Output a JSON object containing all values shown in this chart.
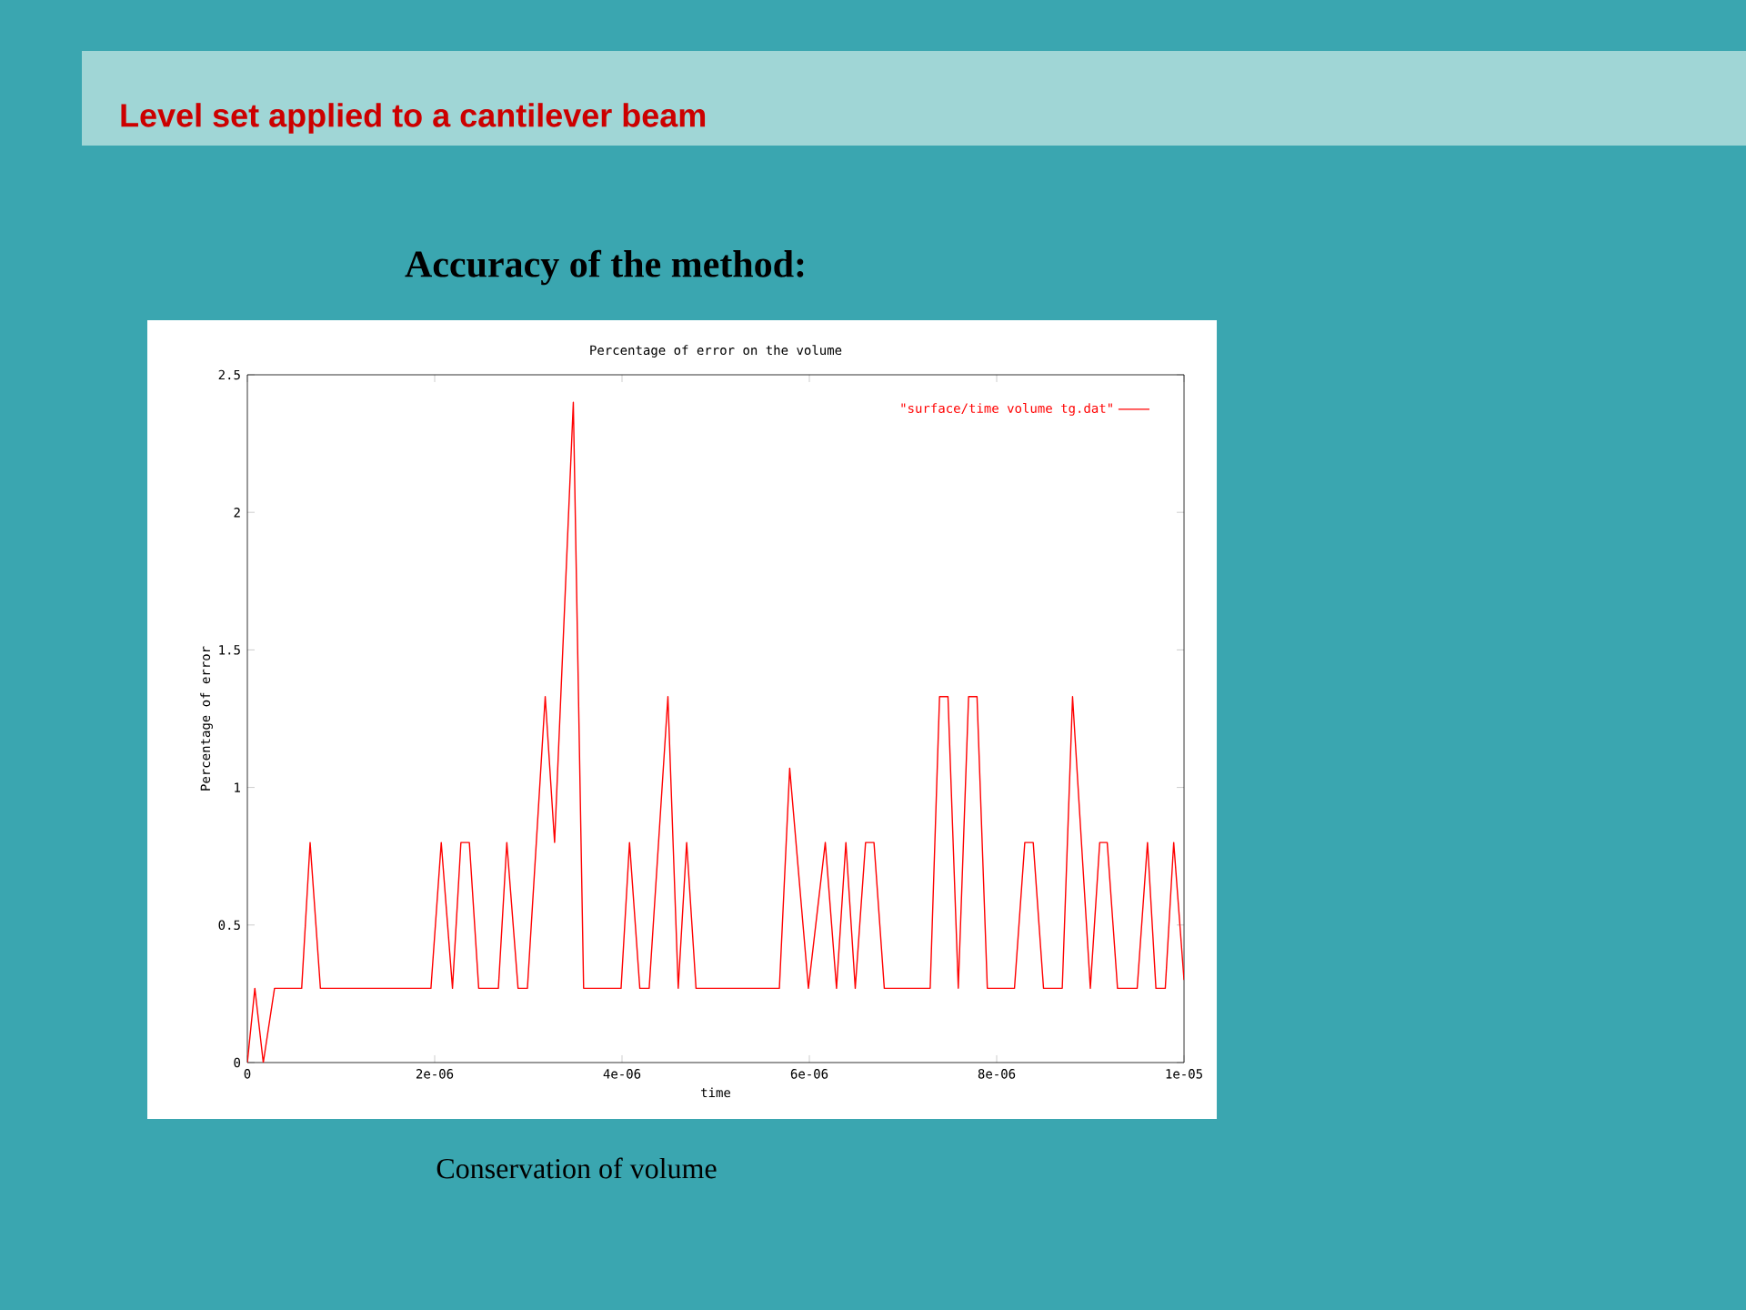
{
  "chart_data": {
    "type": "line",
    "title": "Percentage of error on the volume",
    "xlabel": "time",
    "ylabel": "Percentage of error",
    "annotations": [
      "Level set applied to a cantilever beam",
      "Accuracy of the method:",
      "Conservation of volume"
    ],
    "x": [
      0,
      8e-08,
      1.7e-07,
      2.9e-07,
      5.8e-07,
      6.7e-07,
      7.8e-07,
      1.96e-06,
      2.07e-06,
      2.19e-06,
      2.28e-06,
      2.37e-06,
      2.47e-06,
      2.68e-06,
      2.77e-06,
      2.89e-06,
      2.99e-06,
      3.18e-06,
      3.28e-06,
      3.48e-06,
      3.59e-06,
      3.99e-06,
      4.08e-06,
      4.19e-06,
      4.29e-06,
      4.49e-06,
      4.6e-06,
      4.69e-06,
      4.79e-06,
      5.68e-06,
      5.79e-06,
      5.99e-06,
      6.17e-06,
      6.29e-06,
      6.39e-06,
      6.49e-06,
      6.6e-06,
      6.69e-06,
      6.8e-06,
      7.29e-06,
      7.39e-06,
      7.48e-06,
      7.59e-06,
      7.7e-06,
      7.79e-06,
      7.9e-06,
      8.19e-06,
      8.3e-06,
      8.39e-06,
      8.5e-06,
      8.7e-06,
      8.81e-06,
      9e-06,
      9.1e-06,
      9.18e-06,
      9.29e-06,
      9.5e-06,
      9.61e-06,
      9.7e-06,
      9.8e-06,
      9.89e-06,
      1e-05
    ],
    "series": [
      {
        "name": "\"surface/time volume tg.dat\"",
        "color": "#ff0000",
        "values": [
          0,
          0.27,
          0,
          0.27,
          0.27,
          0.8,
          0.27,
          0.27,
          0.8,
          0.27,
          0.8,
          0.8,
          0.27,
          0.27,
          0.8,
          0.27,
          0.27,
          1.33,
          0.8,
          2.4,
          0.27,
          0.27,
          0.8,
          0.27,
          0.27,
          1.33,
          0.27,
          0.8,
          0.27,
          0.27,
          1.07,
          0.27,
          0.8,
          0.27,
          0.8,
          0.27,
          0.8,
          0.8,
          0.27,
          0.27,
          1.33,
          1.33,
          0.27,
          1.33,
          1.33,
          0.27,
          0.27,
          0.8,
          0.8,
          0.27,
          0.27,
          1.33,
          0.27,
          0.8,
          0.8,
          0.27,
          0.27,
          0.8,
          0.27,
          0.27,
          0.8,
          0.3
        ]
      }
    ],
    "xlim": [
      0,
      1e-05
    ],
    "xticks": [
      0,
      {
        "value": 2e-06,
        "label": "2e-06"
      },
      {
        "value": 4e-06,
        "label": "4e-06"
      },
      {
        "value": 6e-06,
        "label": "6e-06"
      },
      {
        "value": 8e-06,
        "label": "8e-06"
      },
      {
        "value": 1e-05,
        "label": "1e-05"
      }
    ],
    "ylim": [
      0,
      2.5
    ],
    "yticks": [
      0,
      0.5,
      1,
      1.5,
      2,
      2.5
    ],
    "legend": "top right",
    "grid": false,
    "marker": "none",
    "line_style": "solid"
  }
}
